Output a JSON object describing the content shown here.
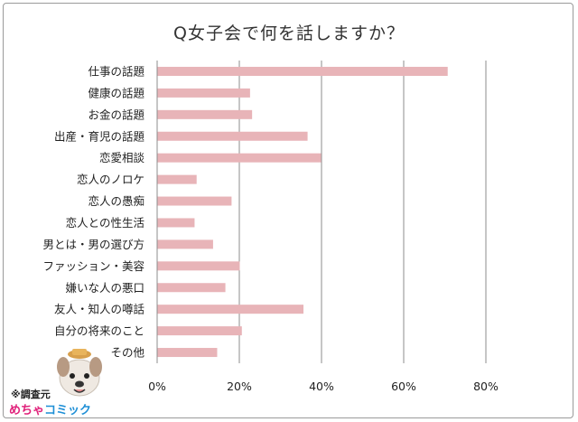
{
  "title": "Q女子会で何を話しますか？",
  "source_note": "※調査元",
  "logo": {
    "part1": "めちゃ",
    "part2": "コミック"
  },
  "bar_color": "#e8b4b8",
  "grid_color": "#8c8c8c",
  "chart_data": {
    "type": "bar",
    "orientation": "horizontal",
    "title": "Q女子会で何を話しますか？",
    "categories": [
      "仕事の話題",
      "健康の話題",
      "お金の話題",
      "出産・育児の話題",
      "恋愛相談",
      "恋人のノロケ",
      "恋人の愚痴",
      "恋人との性生活",
      "男とは・男の選び方",
      "ファッション・美容",
      "嫌いな人の悪口",
      "友人・知人の噂話",
      "自分の将来のこと",
      "その他"
    ],
    "values": [
      70.6,
      22.5,
      23.0,
      36.5,
      39.8,
      9.5,
      18.0,
      9.0,
      13.5,
      20.0,
      16.5,
      35.5,
      20.5,
      14.5
    ],
    "xlim": [
      0,
      80
    ],
    "xticks": [
      "0%",
      "20%",
      "40%",
      "60%",
      "80%"
    ],
    "grid": "vertical"
  }
}
